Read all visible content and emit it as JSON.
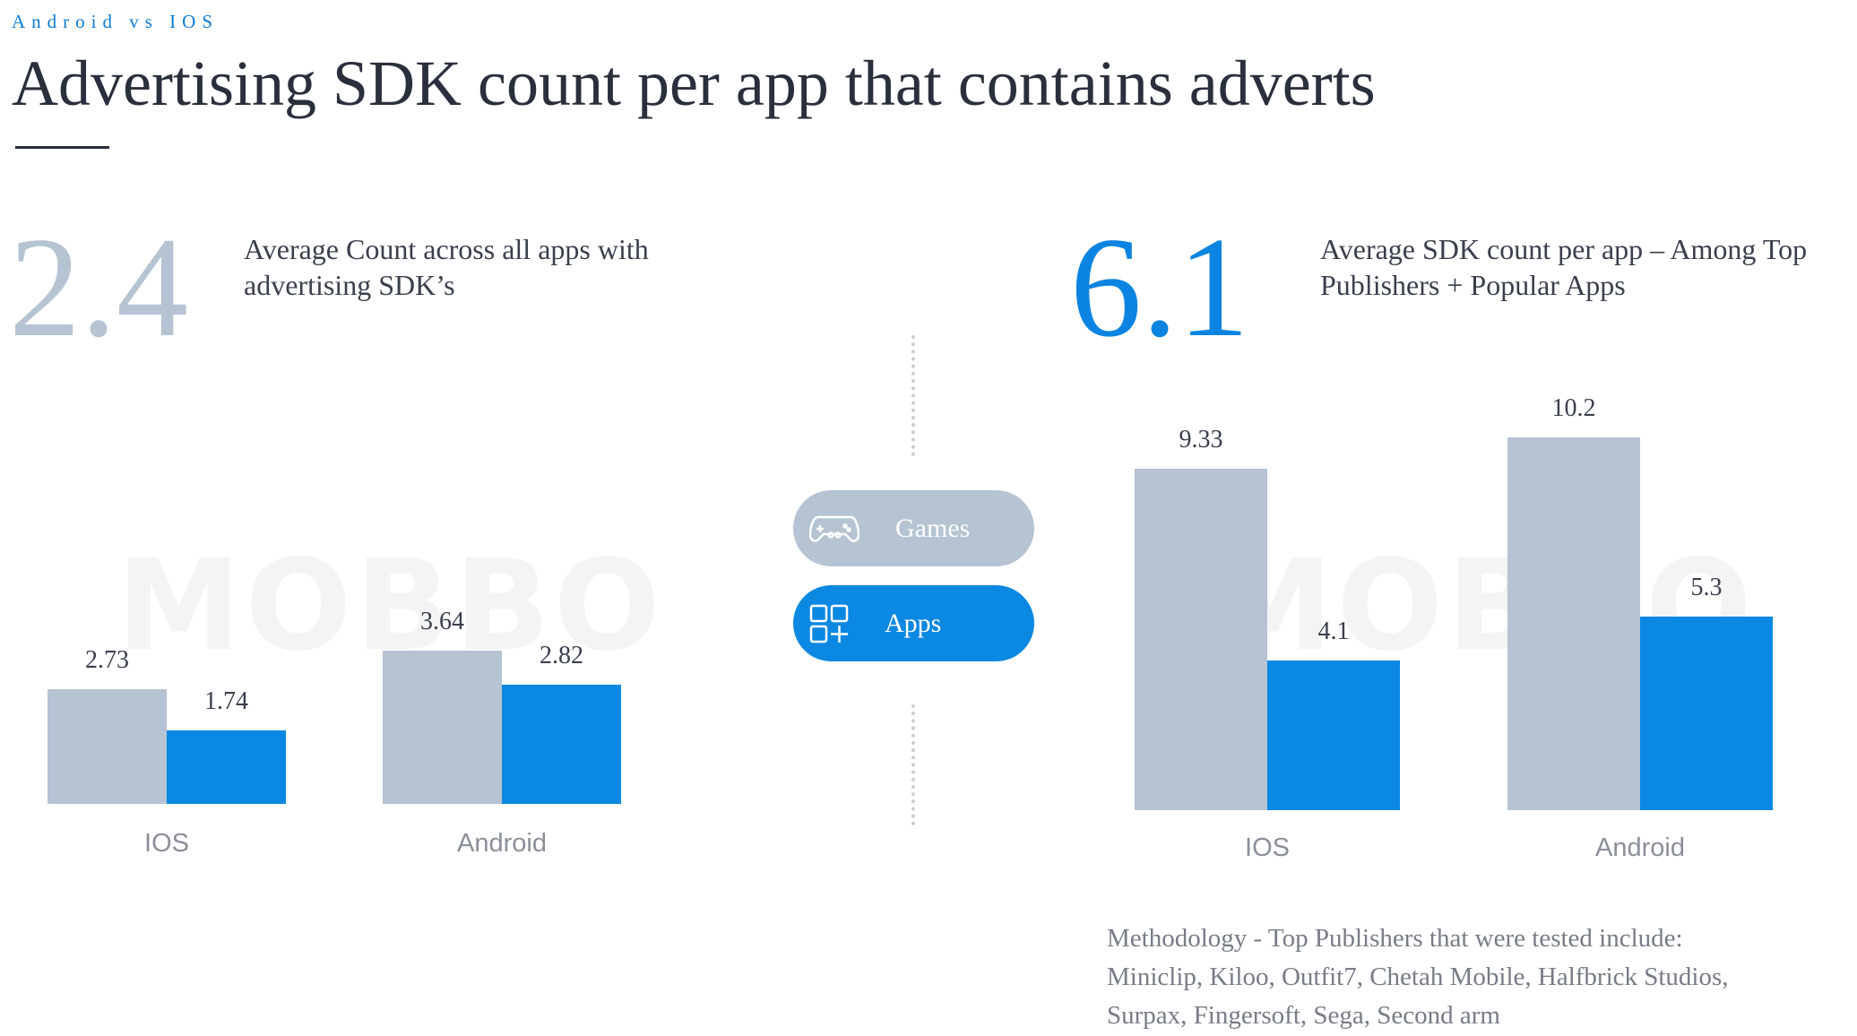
{
  "header": {
    "kicker": "Android vs IOS",
    "title": "Advertising SDK count per app that contains adverts"
  },
  "left": {
    "big_number": "2.4",
    "description": "Average Count across all apps with advertising SDK’s"
  },
  "right": {
    "big_number": "6.1",
    "description": "Average  SDK count per app – Among Top Publishers + Popular Apps"
  },
  "toggle": {
    "games_label": "Games",
    "apps_label": "Apps",
    "games_icon": "gamepad-icon",
    "apps_icon": "apps-grid-icon",
    "selected": "Apps"
  },
  "watermark": "MOBBO",
  "colors": {
    "grey": "#b5c3d2",
    "blue": "#0a88e2"
  },
  "methodology": [
    "Methodology - Top Publishers that were tested include:",
    "Miniclip, Kiloo, Outfit7, Chetah Mobile, Halfbrick Studios,",
    "Surpax, Fingersoft, Sega, Second arm"
  ],
  "chart_data": [
    {
      "type": "bar",
      "categories": [
        "IOS",
        "Android"
      ],
      "series": [
        {
          "values": [
            2.73,
            3.64
          ],
          "labels": [
            "2.73",
            "3.64"
          ]
        },
        {
          "values": [
            1.74,
            2.82
          ],
          "labels": [
            "1.74",
            "2.82"
          ]
        }
      ]
    },
    {
      "type": "bar",
      "categories": [
        "IOS",
        "Android"
      ],
      "series": [
        {
          "values": [
            9.33,
            10.2
          ],
          "labels": [
            "9.33",
            "10.2"
          ]
        },
        {
          "values": [
            4.1,
            5.3
          ],
          "labels": [
            "4.1",
            "5.3"
          ]
        }
      ]
    }
  ]
}
